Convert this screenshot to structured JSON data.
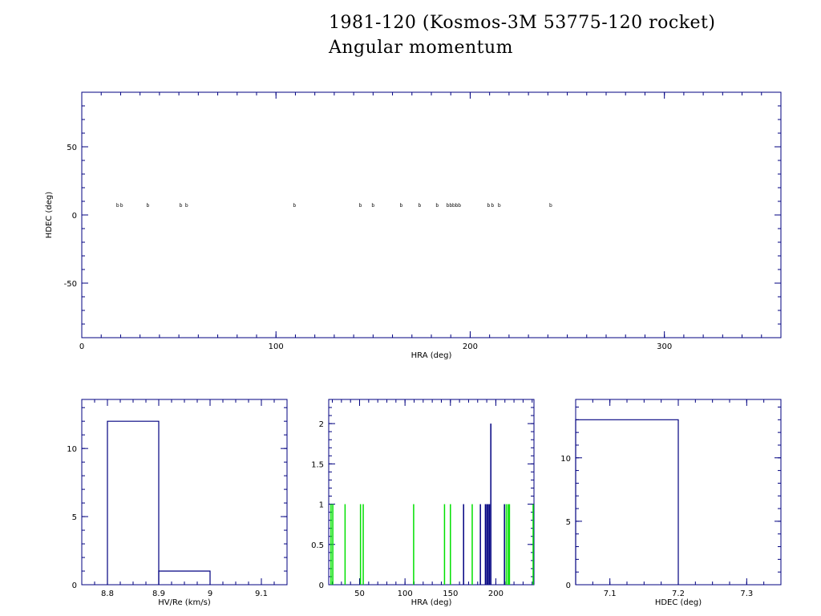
{
  "header": {
    "title_line1": "1981-120 (Kosmos-3M 53775-120 rocket)",
    "title_line2": "Angular momentum"
  },
  "colors": {
    "axes": "#000080",
    "green": "#00e000",
    "blue": "#000080",
    "text": "#000000"
  },
  "chart_data": [
    {
      "type": "scatter",
      "name": "sky-plot",
      "xlabel": "HRA (deg)",
      "ylabel": "HDEC (deg)",
      "xlim": [
        0,
        360
      ],
      "ylim": [
        -90,
        90
      ],
      "xticks": [
        0,
        100,
        200,
        300
      ],
      "yticks": [
        -50,
        0,
        50
      ],
      "marker": "b",
      "points": [
        {
          "x": 18.5,
          "y": 7.1,
          "color": "green"
        },
        {
          "x": 20.5,
          "y": 7.1,
          "color": "green"
        },
        {
          "x": 34,
          "y": 7.1,
          "color": "green"
        },
        {
          "x": 51,
          "y": 7.1,
          "color": "green"
        },
        {
          "x": 54,
          "y": 7.1,
          "color": "green"
        },
        {
          "x": 109.5,
          "y": 7.1,
          "color": "green"
        },
        {
          "x": 143.5,
          "y": 7.1,
          "color": "green"
        },
        {
          "x": 150,
          "y": 7.1,
          "color": "green"
        },
        {
          "x": 164.5,
          "y": 7.1,
          "color": "blue"
        },
        {
          "x": 174,
          "y": 7.1,
          "color": "green"
        },
        {
          "x": 183,
          "y": 7.1,
          "color": "blue"
        },
        {
          "x": 188.5,
          "y": 7.1,
          "color": "blue"
        },
        {
          "x": 190,
          "y": 7.1,
          "color": "blue"
        },
        {
          "x": 191.5,
          "y": 7.1,
          "color": "blue"
        },
        {
          "x": 193,
          "y": 7.1,
          "color": "blue"
        },
        {
          "x": 194.5,
          "y": 7.1,
          "color": "blue"
        },
        {
          "x": 209.5,
          "y": 7.1,
          "color": "blue"
        },
        {
          "x": 211.5,
          "y": 7.1,
          "color": "green"
        },
        {
          "x": 215,
          "y": 7.1,
          "color": "green"
        },
        {
          "x": 241.5,
          "y": 7.1,
          "color": "green"
        }
      ]
    },
    {
      "type": "histogram",
      "name": "hv-histogram",
      "xlabel": "HV/Re (km/s)",
      "ylabel": "",
      "xlim": [
        8.75,
        9.15
      ],
      "ylim": [
        0,
        13.6
      ],
      "xticks": [
        8.8,
        8.9,
        9,
        9.1
      ],
      "xtick_labels": [
        "8.8",
        "8.9",
        "9",
        "9.1"
      ],
      "yticks": [
        0,
        5,
        10
      ],
      "bins": [
        {
          "x0": 8.8,
          "x1": 8.9,
          "count": 12
        },
        {
          "x0": 8.9,
          "x1": 9.0,
          "count": 1
        }
      ]
    },
    {
      "type": "bar",
      "name": "hra-histogram",
      "xlabel": "HRA (deg)",
      "ylabel": "",
      "xlim": [
        16,
        242
      ],
      "ylim": [
        0,
        2.3
      ],
      "xticks": [
        50,
        100,
        150,
        200
      ],
      "yticks": [
        0,
        0.5,
        1,
        1.5,
        2
      ],
      "ytick_labels": [
        "0",
        "0.5",
        "1",
        "1.5",
        "2"
      ],
      "bars": [
        {
          "x": 18.5,
          "value": 1,
          "color": "green"
        },
        {
          "x": 20.5,
          "value": 1,
          "color": "green"
        },
        {
          "x": 34,
          "value": 1,
          "color": "green"
        },
        {
          "x": 51,
          "value": 1,
          "color": "green"
        },
        {
          "x": 54,
          "value": 1,
          "color": "green"
        },
        {
          "x": 109.5,
          "value": 1,
          "color": "green"
        },
        {
          "x": 143.5,
          "value": 1,
          "color": "green"
        },
        {
          "x": 150,
          "value": 1,
          "color": "green"
        },
        {
          "x": 164.5,
          "value": 1,
          "color": "blue"
        },
        {
          "x": 174,
          "value": 1,
          "color": "green"
        },
        {
          "x": 183,
          "value": 1,
          "color": "blue"
        },
        {
          "x": 188.5,
          "value": 1,
          "color": "blue"
        },
        {
          "x": 190,
          "value": 1,
          "color": "blue"
        },
        {
          "x": 191.5,
          "value": 1,
          "color": "blue"
        },
        {
          "x": 193,
          "value": 1,
          "color": "blue"
        },
        {
          "x": 194.5,
          "value": 2,
          "color": "blue"
        },
        {
          "x": 209.5,
          "value": 1,
          "color": "blue"
        },
        {
          "x": 211.5,
          "value": 1,
          "color": "green"
        },
        {
          "x": 213.5,
          "value": 1,
          "color": "green"
        },
        {
          "x": 215,
          "value": 1,
          "color": "green"
        },
        {
          "x": 241.5,
          "value": 1,
          "color": "green"
        }
      ]
    },
    {
      "type": "histogram",
      "name": "hdec-histogram",
      "xlabel": "HDEC (deg)",
      "ylabel": "",
      "xlim": [
        7.05,
        7.35
      ],
      "ylim": [
        0,
        14.6
      ],
      "xticks": [
        7.1,
        7.2,
        7.3
      ],
      "xtick_labels": [
        "7.1",
        "7.2",
        "7.3"
      ],
      "yticks": [
        0,
        5,
        10
      ],
      "bins": [
        {
          "x0": 7.0,
          "x1": 7.2,
          "count": 13
        }
      ]
    }
  ]
}
